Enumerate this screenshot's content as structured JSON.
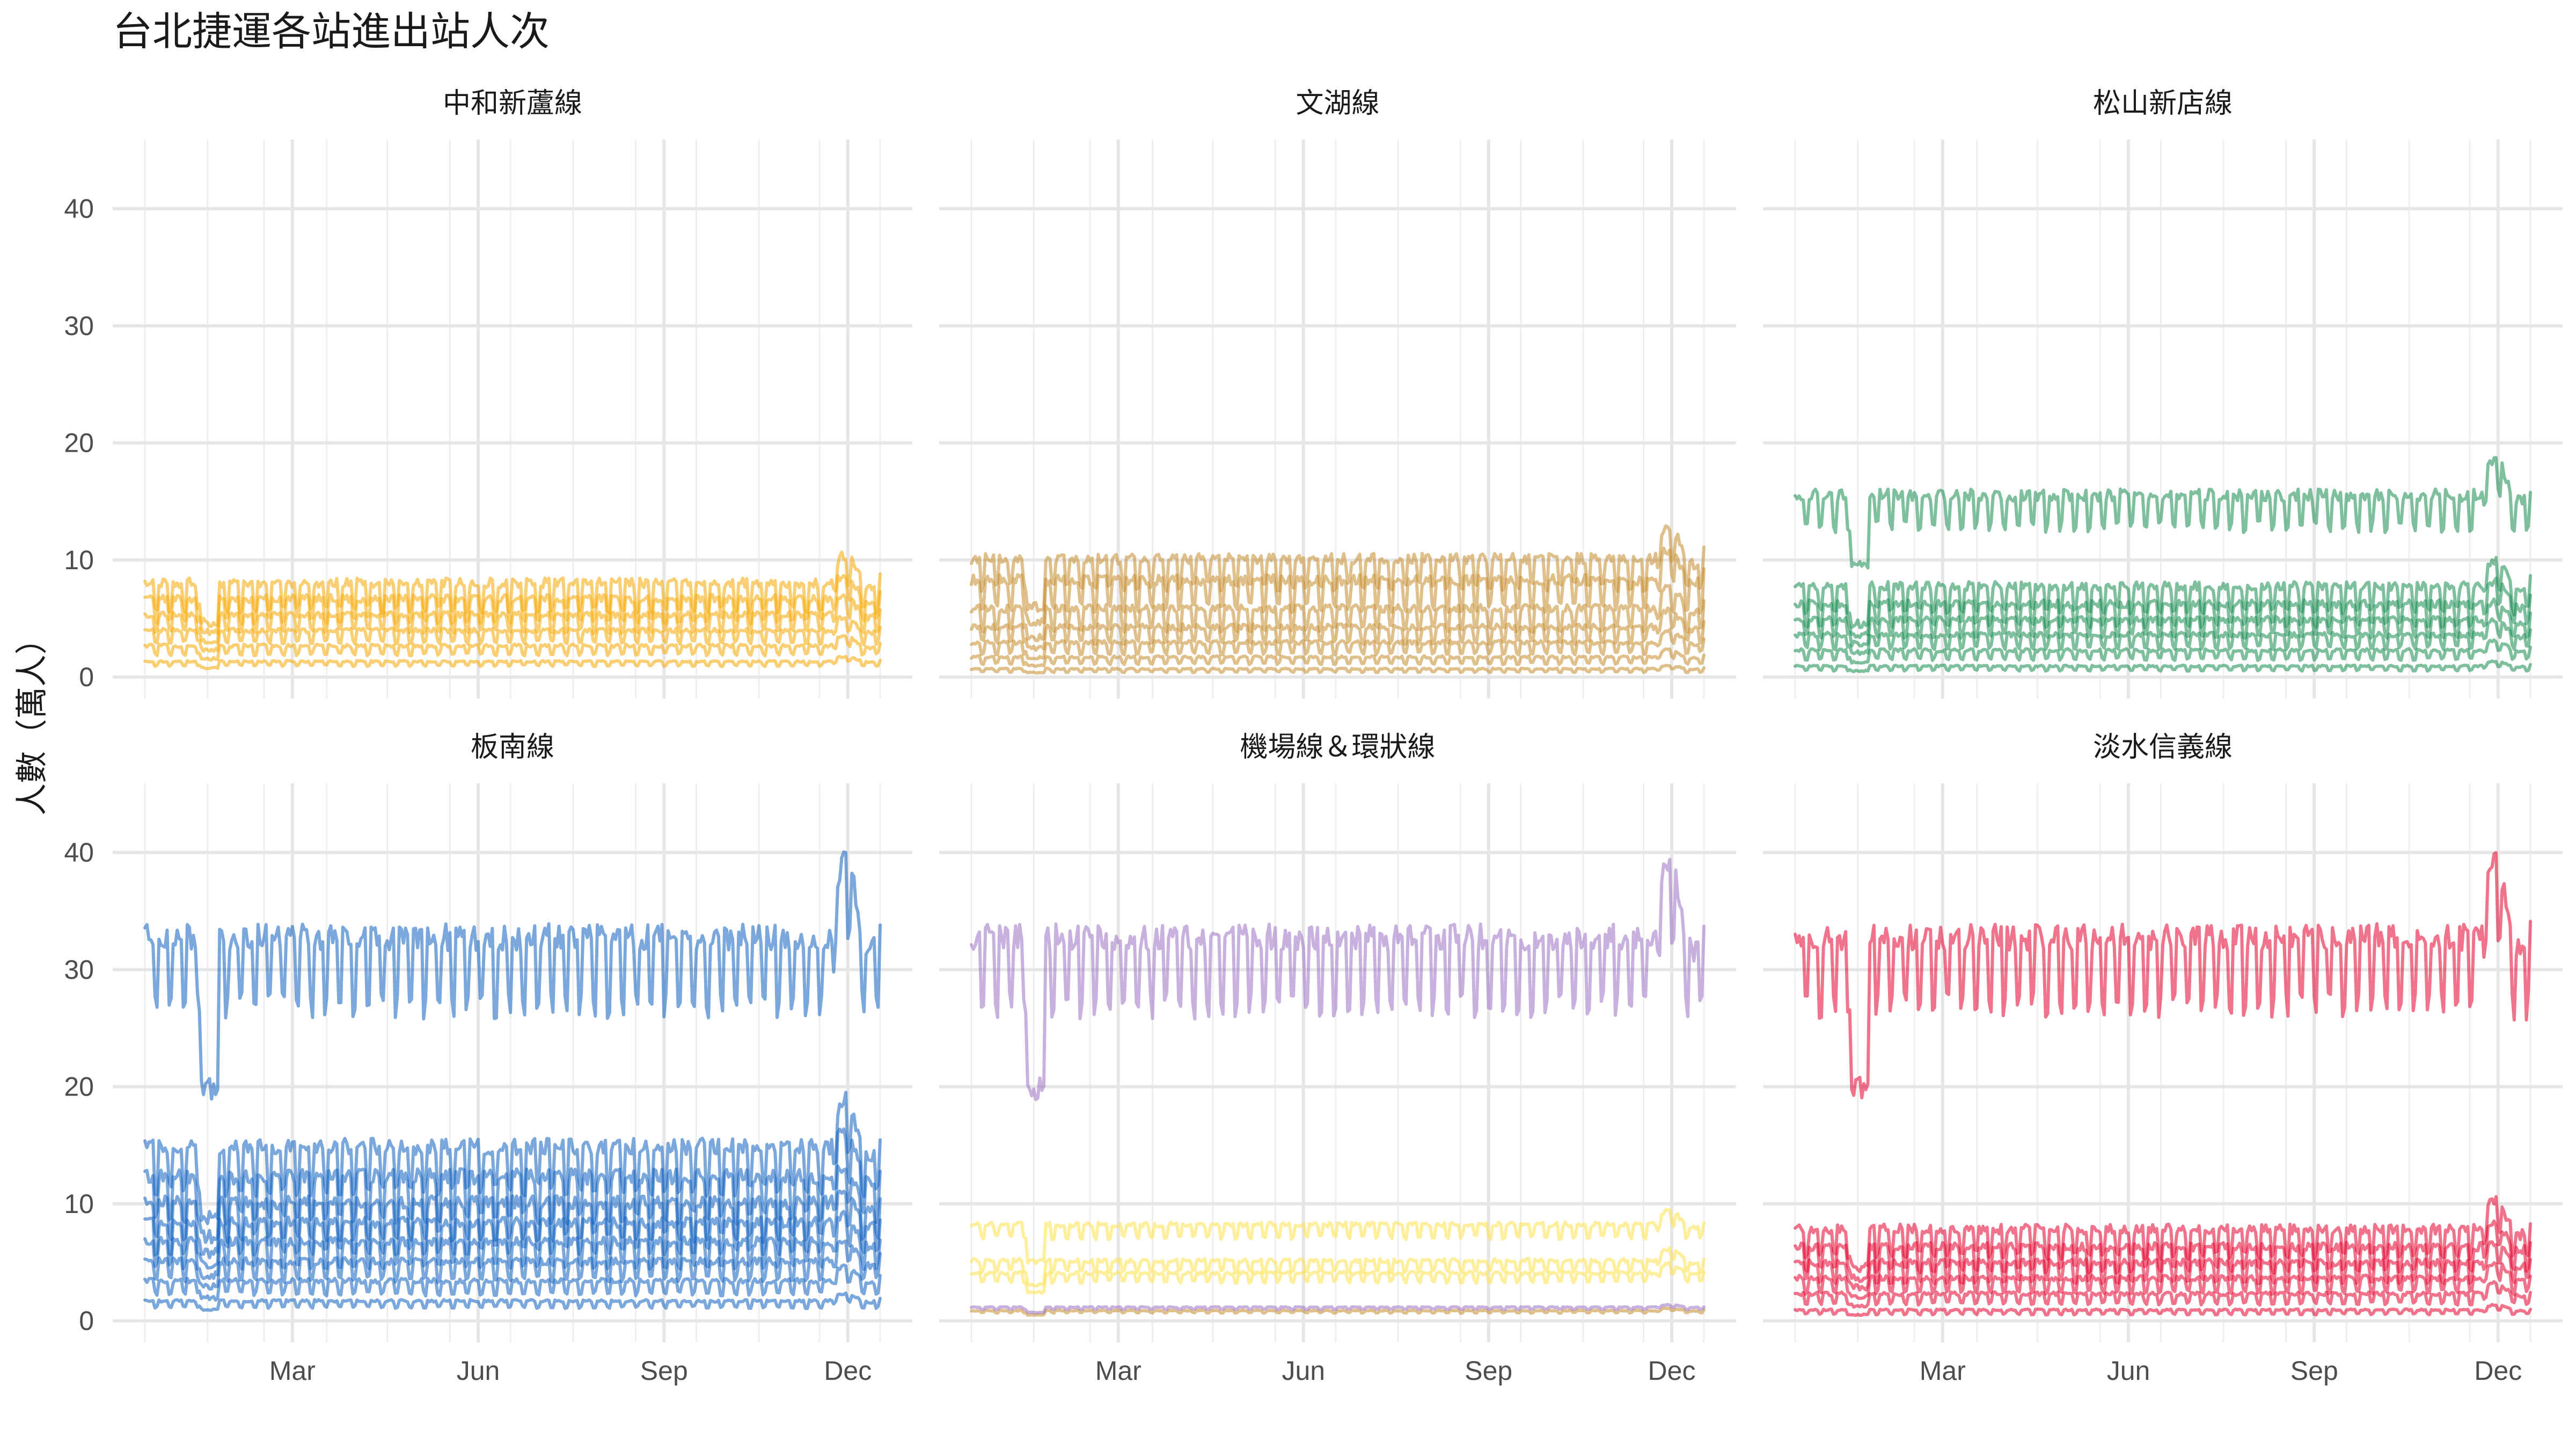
{
  "chart_data": {
    "type": "line",
    "title": "台北捷運各站進出站人次",
    "ylabel": "人數（萬人）",
    "xlabel": "",
    "xlim": [
      "Jan",
      "Dec"
    ],
    "ylim": [
      0,
      45
    ],
    "y_ticks": [
      0,
      10,
      20,
      30,
      40
    ],
    "x_ticks": [
      "Mar",
      "Jun",
      "Sep",
      "Dec"
    ],
    "grid": true,
    "legend": "none",
    "panels": [
      {
        "name": "中和新蘆線",
        "color": "#f5a800",
        "series": [
          {
            "base": 1.2,
            "amp": 0.4
          },
          {
            "base": 2.4,
            "amp": 0.8
          },
          {
            "base": 3.6,
            "amp": 1.1
          },
          {
            "base": 4.8,
            "amp": 1.5
          },
          {
            "base": 6.0,
            "amp": 2.0
          },
          {
            "base": 7.2,
            "amp": 2.4
          }
        ]
      },
      {
        "name": "文湖線",
        "color": "#c48b2a",
        "series": [
          {
            "base": 0.6,
            "amp": 0.3
          },
          {
            "base": 1.5,
            "amp": 0.6
          },
          {
            "base": 2.6,
            "amp": 1.0
          },
          {
            "base": 3.8,
            "amp": 1.4
          },
          {
            "base": 5.2,
            "amp": 1.9
          },
          {
            "base": 7.4,
            "amp": 2.6
          },
          {
            "base": 9.2,
            "amp": 2.6
          }
        ]
      },
      {
        "name": "松山新店線",
        "color": "#148a4f",
        "series": [
          {
            "base": 0.8,
            "amp": 0.4
          },
          {
            "base": 2.0,
            "amp": 0.8
          },
          {
            "base": 3.2,
            "amp": 1.2
          },
          {
            "base": 4.4,
            "amp": 1.5
          },
          {
            "base": 5.6,
            "amp": 1.9
          },
          {
            "base": 7.0,
            "amp": 2.2
          },
          {
            "base": 14.5,
            "amp": 3.0
          }
        ]
      },
      {
        "name": "板南線",
        "color": "#0d5fbf",
        "series": [
          {
            "base": 1.5,
            "amp": 0.6
          },
          {
            "base": 3.0,
            "amp": 1.2
          },
          {
            "base": 4.5,
            "amp": 1.7
          },
          {
            "base": 6.0,
            "amp": 2.2
          },
          {
            "base": 7.5,
            "amp": 2.6
          },
          {
            "base": 9.0,
            "amp": 3.2
          },
          {
            "base": 11.0,
            "amp": 3.8
          },
          {
            "base": 13.5,
            "amp": 4.0
          },
          {
            "base": 30.5,
            "amp": 6.5
          }
        ]
      },
      {
        "name": "機場線＆環狀線",
        "color": "#9b6fc4",
        "series": [
          {
            "base": 0.8,
            "amp": 0.2,
            "color": "#c48b2a"
          },
          {
            "base": 1.1,
            "amp": 0.2
          },
          {
            "base": 3.8,
            "amp": 0.8,
            "color": "#ffe14d"
          },
          {
            "base": 4.8,
            "amp": 1.0,
            "color": "#ffe14d"
          },
          {
            "base": 7.8,
            "amp": 1.2,
            "color": "#ffe14d"
          },
          {
            "base": 30.5,
            "amp": 6.5
          }
        ]
      },
      {
        "name": "淡水信義線",
        "color": "#e3002c",
        "series": [
          {
            "base": 0.8,
            "amp": 0.4
          },
          {
            "base": 2.0,
            "amp": 0.9
          },
          {
            "base": 3.2,
            "amp": 1.3
          },
          {
            "base": 4.4,
            "amp": 1.7
          },
          {
            "base": 5.6,
            "amp": 2.1
          },
          {
            "base": 7.0,
            "amp": 2.4
          },
          {
            "base": 30.5,
            "amp": 6.5
          }
        ]
      }
    ]
  }
}
